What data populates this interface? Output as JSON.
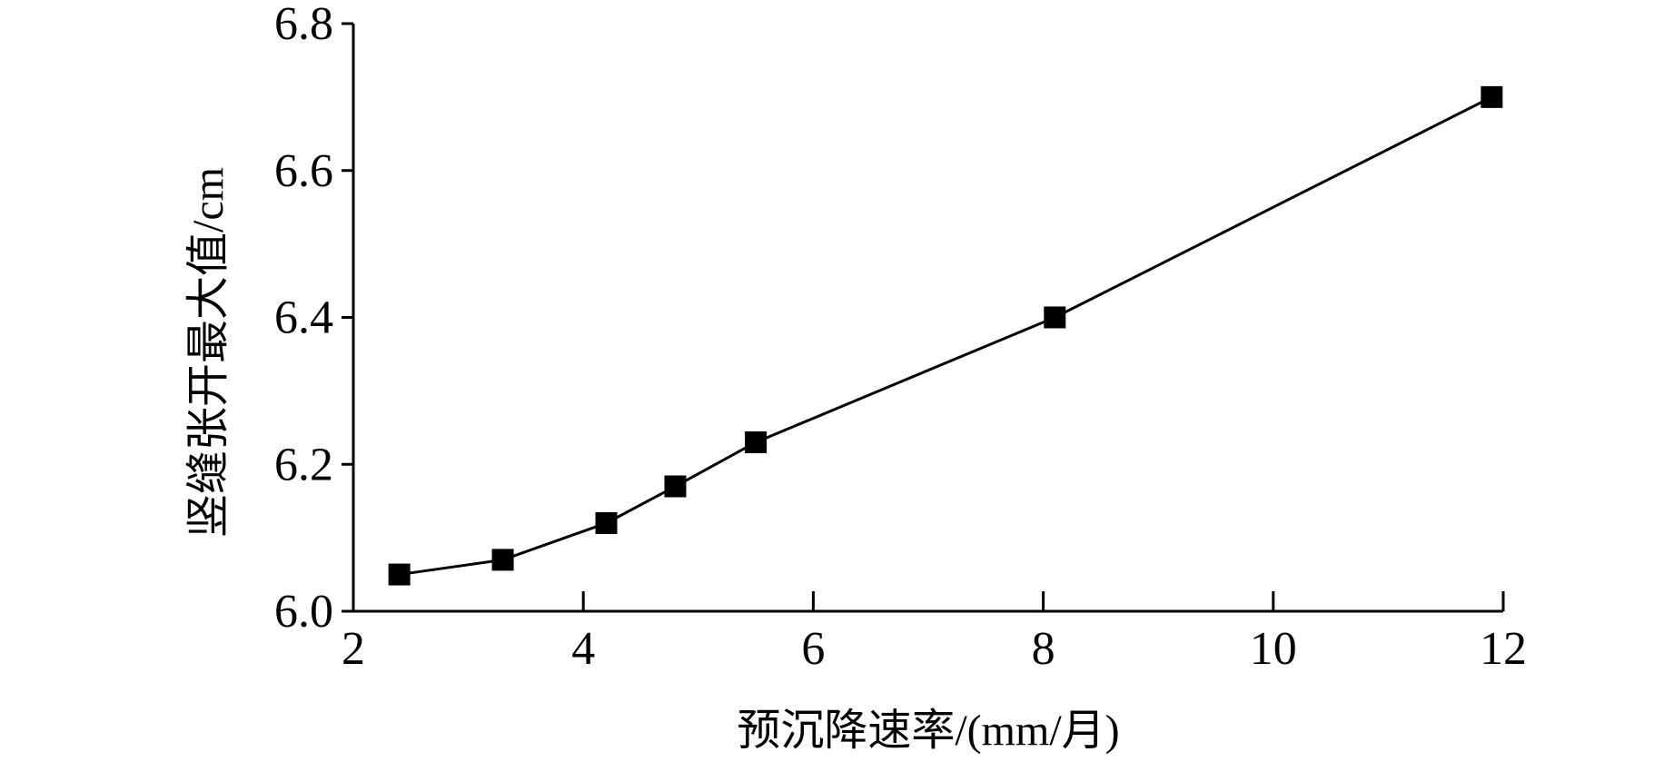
{
  "chart_data": {
    "type": "line",
    "x_label": "预沉降速率/(mm/月)",
    "y_label": "竖缝张开最大值/cm",
    "x": [
      2.4,
      3.3,
      4.2,
      4.8,
      5.5,
      8.1,
      11.9
    ],
    "series": [
      {
        "color": "#000000",
        "values": [
          6.05,
          6.07,
          6.12,
          6.17,
          6.23,
          6.4,
          6.7
        ]
      }
    ],
    "xlim": [
      2,
      12
    ],
    "xticks": [
      2,
      4,
      6,
      8,
      10,
      12
    ],
    "ylim": [
      6.0,
      6.8
    ],
    "yticks": [
      {
        "value": 6.0,
        "label": "6.0"
      },
      {
        "value": 6.2,
        "label": "6.2"
      },
      {
        "value": 6.4,
        "label": "6.4"
      },
      {
        "value": 6.6,
        "label": "6.6"
      },
      {
        "value": 6.8,
        "label": "6.8"
      }
    ],
    "marker": "square",
    "grid": false
  }
}
